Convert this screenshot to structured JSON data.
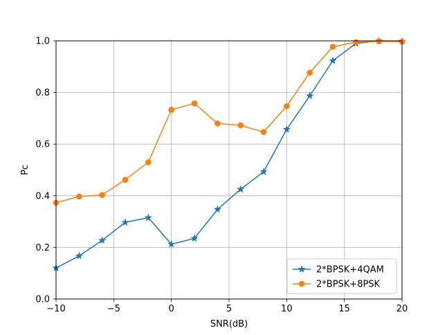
{
  "chart_data": {
    "type": "line",
    "xlabel": "SNR(dB)",
    "ylabel": "Pc",
    "xlim": [
      -10,
      20
    ],
    "ylim": [
      0,
      1
    ],
    "xticks": [
      -10,
      -5,
      0,
      5,
      10,
      15,
      20
    ],
    "yticks": [
      0.0,
      0.2,
      0.4,
      0.6,
      0.8,
      1.0
    ],
    "xtick_labels": [
      "−10",
      "−5",
      "0",
      "5",
      "10",
      "15",
      "20"
    ],
    "ytick_labels": [
      "0.0",
      "0.2",
      "0.4",
      "0.6",
      "0.8",
      "1.0"
    ],
    "grid": true,
    "legend_position": "lower-right",
    "x": [
      -10,
      -8,
      -6,
      -4,
      -2,
      0,
      2,
      4,
      6,
      8,
      10,
      12,
      14,
      16,
      18,
      20
    ],
    "series": [
      {
        "name": "2*BPSK+4QAM",
        "color": "#1f77b4",
        "marker": "star",
        "values": [
          0.12,
          0.167,
          0.227,
          0.297,
          0.315,
          0.212,
          0.235,
          0.347,
          0.425,
          0.493,
          0.657,
          0.787,
          0.923,
          0.99,
          1.0,
          0.998
        ]
      },
      {
        "name": "2*BPSK+8PSK",
        "color": "#ff7f0e",
        "marker": "circle",
        "values": [
          0.373,
          0.397,
          0.403,
          0.462,
          0.53,
          0.733,
          0.758,
          0.68,
          0.673,
          0.647,
          0.747,
          0.877,
          0.977,
          0.995,
          0.998,
          0.997
        ]
      }
    ]
  }
}
